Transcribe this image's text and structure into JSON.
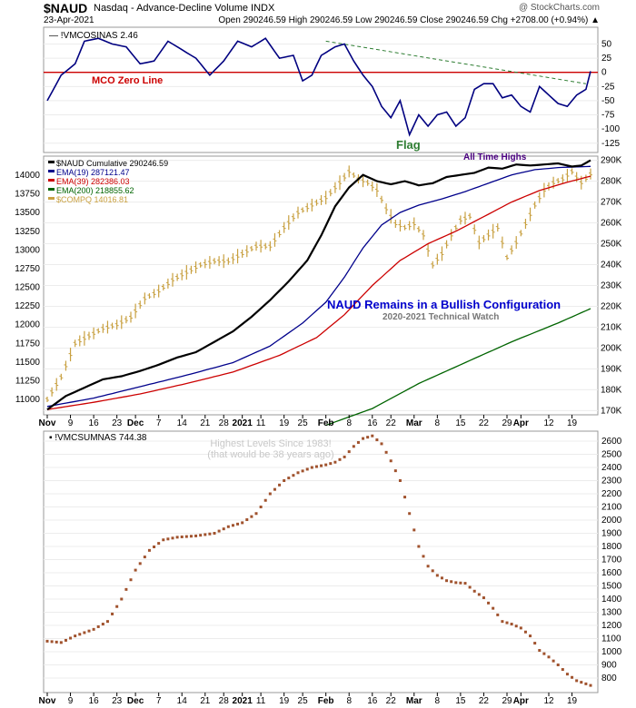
{
  "header": {
    "symbol": "$NAUD",
    "description": "Nasdaq - Advance-Decline Volume INDX",
    "brand": "@ StockCharts.com",
    "date": "23-Apr-2021",
    "ohlc": "Open 290246.59  High 290246.59  Low 290246.59  Close 290246.59  Chg +2708.00 (+0.94%) ▲"
  },
  "colors": {
    "price": "#000000",
    "ema19": "#00008b",
    "ema39": "#cc0000",
    "ema200": "#006400",
    "compq": "#c8a040",
    "mco": "#000080",
    "zero": "#cc0000",
    "trend": "#2e7d32",
    "summ": "#a0522d"
  },
  "x_axis": {
    "labels": [
      {
        "t": "Nov",
        "i": 0,
        "bold": true
      },
      {
        "t": "9",
        "i": 5
      },
      {
        "t": "16",
        "i": 10
      },
      {
        "t": "23",
        "i": 15
      },
      {
        "t": "Dec",
        "i": 19,
        "bold": true
      },
      {
        "t": "7",
        "i": 24
      },
      {
        "t": "14",
        "i": 29
      },
      {
        "t": "21",
        "i": 34
      },
      {
        "t": "28",
        "i": 38
      },
      {
        "t": "2021",
        "i": 42,
        "bold": true
      },
      {
        "t": "11",
        "i": 46
      },
      {
        "t": "19",
        "i": 51
      },
      {
        "t": "25",
        "i": 55
      },
      {
        "t": "Feb",
        "i": 60,
        "bold": true
      },
      {
        "t": "8",
        "i": 65
      },
      {
        "t": "16",
        "i": 70
      },
      {
        "t": "22",
        "i": 74
      },
      {
        "t": "Mar",
        "i": 79,
        "bold": true
      },
      {
        "t": "8",
        "i": 84
      },
      {
        "t": "15",
        "i": 89
      },
      {
        "t": "22",
        "i": 94
      },
      {
        "t": "29",
        "i": 99
      },
      {
        "t": "Apr",
        "i": 102,
        "bold": true
      },
      {
        "t": "12",
        "i": 108
      },
      {
        "t": "19",
        "i": 113
      }
    ],
    "count": 118
  },
  "chart_data": [
    {
      "type": "line",
      "panel": "oscillator",
      "legend": "!VMCOSINAS 2.46",
      "yticks": [
        50,
        25,
        0,
        -25,
        -50,
        -75,
        -100,
        -125
      ],
      "ylim": [
        -135,
        70
      ],
      "zero_label": "MCO Zero Line",
      "annotation": "Flag",
      "trendline": {
        "from": {
          "i": 60,
          "y": 55
        },
        "to": {
          "i": 116,
          "y": -20
        }
      },
      "anchors": [
        [
          0,
          -50
        ],
        [
          3,
          -5
        ],
        [
          6,
          15
        ],
        [
          8,
          55
        ],
        [
          11,
          60
        ],
        [
          14,
          50
        ],
        [
          17,
          45
        ],
        [
          20,
          15
        ],
        [
          23,
          20
        ],
        [
          26,
          55
        ],
        [
          29,
          40
        ],
        [
          32,
          25
        ],
        [
          35,
          -5
        ],
        [
          38,
          20
        ],
        [
          41,
          55
        ],
        [
          44,
          45
        ],
        [
          47,
          60
        ],
        [
          50,
          25
        ],
        [
          53,
          30
        ],
        [
          55,
          -15
        ],
        [
          57,
          -5
        ],
        [
          59,
          30
        ],
        [
          62,
          45
        ],
        [
          64,
          50
        ],
        [
          66,
          20
        ],
        [
          68,
          -5
        ],
        [
          70,
          -25
        ],
        [
          72,
          -60
        ],
        [
          74,
          -80
        ],
        [
          76,
          -50
        ],
        [
          78,
          -110
        ],
        [
          80,
          -75
        ],
        [
          82,
          -95
        ],
        [
          84,
          -75
        ],
        [
          86,
          -70
        ],
        [
          88,
          -95
        ],
        [
          90,
          -80
        ],
        [
          92,
          -30
        ],
        [
          94,
          -20
        ],
        [
          96,
          -20
        ],
        [
          98,
          -45
        ],
        [
          100,
          -40
        ],
        [
          102,
          -60
        ],
        [
          104,
          -70
        ],
        [
          106,
          -25
        ],
        [
          108,
          -40
        ],
        [
          110,
          -55
        ],
        [
          112,
          -60
        ],
        [
          114,
          -40
        ],
        [
          116,
          -30
        ],
        [
          117,
          2
        ]
      ]
    },
    {
      "type": "line",
      "panel": "main",
      "series": [
        {
          "name": "$NAUD Cumulative 290246.59",
          "color": "#000000",
          "anchors": [
            [
              0,
              170500
            ],
            [
              4,
              177000
            ],
            [
              8,
              181000
            ],
            [
              12,
              185000
            ],
            [
              16,
              186500
            ],
            [
              20,
              189000
            ],
            [
              24,
              192000
            ],
            [
              28,
              195500
            ],
            [
              32,
              198000
            ],
            [
              36,
              203000
            ],
            [
              40,
              208000
            ],
            [
              44,
              215000
            ],
            [
              48,
              223000
            ],
            [
              52,
              232000
            ],
            [
              56,
              242000
            ],
            [
              59,
              254000
            ],
            [
              62,
              268000
            ],
            [
              65,
              277000
            ],
            [
              68,
              283000
            ],
            [
              71,
              280000
            ],
            [
              74,
              278500
            ],
            [
              77,
              280000
            ],
            [
              80,
              278000
            ],
            [
              83,
              279000
            ],
            [
              86,
              282000
            ],
            [
              89,
              283000
            ],
            [
              92,
              284000
            ],
            [
              95,
              286500
            ],
            [
              98,
              286000
            ],
            [
              101,
              288000
            ],
            [
              104,
              287500
            ],
            [
              107,
              288000
            ],
            [
              110,
              288500
            ],
            [
              113,
              287000
            ],
            [
              115,
              287500
            ],
            [
              117,
              290000
            ]
          ]
        },
        {
          "name": "EMA(19) 287121.47",
          "color": "#00008b",
          "anchors": [
            [
              0,
              172000
            ],
            [
              10,
              176000
            ],
            [
              20,
              181500
            ],
            [
              30,
              187000
            ],
            [
              40,
              193000
            ],
            [
              48,
              201000
            ],
            [
              55,
              212000
            ],
            [
              60,
              222000
            ],
            [
              64,
              234000
            ],
            [
              68,
              248000
            ],
            [
              72,
              259000
            ],
            [
              76,
              265000
            ],
            [
              80,
              268500
            ],
            [
              85,
              271500
            ],
            [
              90,
              275000
            ],
            [
              95,
              279000
            ],
            [
              100,
              283000
            ],
            [
              105,
              285500
            ],
            [
              110,
              286500
            ],
            [
              117,
              287100
            ]
          ]
        },
        {
          "name": "EMA(39) 282386.03",
          "color": "#cc0000",
          "anchors": [
            [
              0,
              170500
            ],
            [
              10,
              174000
            ],
            [
              20,
              178000
            ],
            [
              30,
              183000
            ],
            [
              40,
              188500
            ],
            [
              50,
              196500
            ],
            [
              58,
              205000
            ],
            [
              64,
              216000
            ],
            [
              70,
              230000
            ],
            [
              76,
              242000
            ],
            [
              82,
              250000
            ],
            [
              88,
              256000
            ],
            [
              94,
              263000
            ],
            [
              100,
              270000
            ],
            [
              106,
              275500
            ],
            [
              112,
              279500
            ],
            [
              117,
              282400
            ]
          ]
        },
        {
          "name": "EMA(200) 218855.62",
          "color": "#006400",
          "anchors": [
            [
              60,
              163000
            ],
            [
              70,
              171000
            ],
            [
              80,
              183000
            ],
            [
              90,
              193000
            ],
            [
              100,
              203000
            ],
            [
              110,
              212000
            ],
            [
              117,
              218900
            ]
          ]
        },
        {
          "name": "$COMPQ 14016.81",
          "color": "#c8a040",
          "axis": "left",
          "anchors": [
            [
              0,
              11000
            ],
            [
              3,
              11300
            ],
            [
              6,
              11750
            ],
            [
              9,
              11850
            ],
            [
              12,
              11950
            ],
            [
              15,
              12000
            ],
            [
              18,
              12100
            ],
            [
              21,
              12350
            ],
            [
              24,
              12450
            ],
            [
              27,
              12600
            ],
            [
              30,
              12700
            ],
            [
              33,
              12800
            ],
            [
              36,
              12850
            ],
            [
              39,
              12850
            ],
            [
              42,
              12950
            ],
            [
              45,
              13050
            ],
            [
              48,
              13050
            ],
            [
              51,
              13300
            ],
            [
              54,
              13500
            ],
            [
              57,
              13600
            ],
            [
              60,
              13700
            ],
            [
              63,
              13900
            ],
            [
              65,
              14050
            ],
            [
              67,
              13950
            ],
            [
              69,
              13900
            ],
            [
              71,
              13800
            ],
            [
              73,
              13550
            ],
            [
              75,
              13350
            ],
            [
              77,
              13300
            ],
            [
              79,
              13350
            ],
            [
              81,
              13200
            ],
            [
              83,
              12800
            ],
            [
              85,
              12950
            ],
            [
              87,
              13200
            ],
            [
              89,
              13400
            ],
            [
              91,
              13450
            ],
            [
              93,
              13100
            ],
            [
              95,
              13200
            ],
            [
              97,
              13300
            ],
            [
              99,
              12900
            ],
            [
              101,
              13100
            ],
            [
              103,
              13350
            ],
            [
              105,
              13600
            ],
            [
              107,
              13800
            ],
            [
              109,
              13900
            ],
            [
              111,
              13950
            ],
            [
              113,
              14050
            ],
            [
              115,
              13900
            ],
            [
              117,
              14016
            ]
          ]
        }
      ],
      "left_ticks": [
        14000,
        13750,
        13500,
        13250,
        13000,
        12750,
        12500,
        12250,
        12000,
        11750,
        11500,
        11250,
        11000
      ],
      "right_ticks": [
        "290K",
        "280K",
        "270K",
        "260K",
        "250K",
        "240K",
        "230K",
        "220K",
        "210K",
        "200K",
        "190K",
        "180K",
        "170K"
      ],
      "annotations": {
        "ath": "All Time Highs",
        "title": "NAUD Remains in a Bullish Configuration",
        "subtitle": "2020-2021 Technical Watch"
      }
    },
    {
      "type": "scatter",
      "panel": "summation",
      "legend": "!VMCSUMNAS 744.38",
      "yticks": [
        2600,
        2500,
        2400,
        2300,
        2200,
        2100,
        2000,
        1900,
        1800,
        1700,
        1600,
        1500,
        1400,
        1300,
        1200,
        1100,
        1000,
        900,
        800
      ],
      "annotation": [
        "Highest Levels Since 1983!",
        "(that would be 38 years ago)"
      ],
      "anchors": [
        [
          0,
          1080
        ],
        [
          3,
          1070
        ],
        [
          6,
          1120
        ],
        [
          10,
          1170
        ],
        [
          13,
          1230
        ],
        [
          16,
          1400
        ],
        [
          19,
          1620
        ],
        [
          22,
          1770
        ],
        [
          25,
          1850
        ],
        [
          28,
          1870
        ],
        [
          32,
          1880
        ],
        [
          36,
          1900
        ],
        [
          39,
          1950
        ],
        [
          42,
          1980
        ],
        [
          45,
          2050
        ],
        [
          48,
          2200
        ],
        [
          51,
          2300
        ],
        [
          54,
          2360
        ],
        [
          57,
          2400
        ],
        [
          60,
          2420
        ],
        [
          62,
          2440
        ],
        [
          64,
          2480
        ],
        [
          66,
          2560
        ],
        [
          68,
          2620
        ],
        [
          70,
          2640
        ],
        [
          72,
          2580
        ],
        [
          74,
          2450
        ],
        [
          76,
          2300
        ],
        [
          78,
          2050
        ],
        [
          80,
          1800
        ],
        [
          82,
          1650
        ],
        [
          84,
          1580
        ],
        [
          86,
          1540
        ],
        [
          88,
          1525
        ],
        [
          90,
          1520
        ],
        [
          92,
          1460
        ],
        [
          94,
          1410
        ],
        [
          96,
          1330
        ],
        [
          98,
          1230
        ],
        [
          100,
          1210
        ],
        [
          102,
          1180
        ],
        [
          104,
          1120
        ],
        [
          106,
          1010
        ],
        [
          108,
          960
        ],
        [
          110,
          900
        ],
        [
          112,
          830
        ],
        [
          114,
          780
        ],
        [
          117,
          744
        ]
      ]
    }
  ]
}
